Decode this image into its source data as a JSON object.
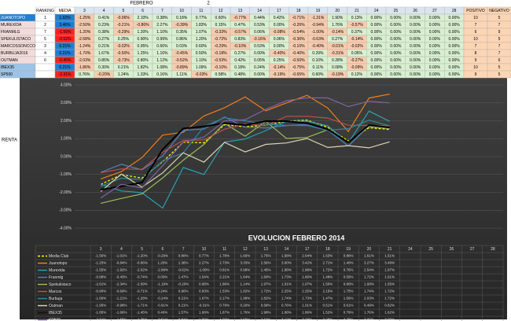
{
  "spreadsheet": {
    "month_label": "FEBRERO",
    "month_number": "2",
    "side_label": "RENTA",
    "columns": [
      "RANKING",
      "MEDIA",
      "3",
      "4",
      "5",
      "6",
      "7",
      "10",
      "11",
      "12",
      "13",
      "14",
      "17",
      "18",
      "19",
      "20",
      "21",
      "24",
      "25",
      "26",
      "27",
      "28",
      "POSITIVO",
      "NEGATIVO"
    ],
    "rows": [
      [
        "JUANOTOPO",
        "1",
        "1.92%",
        "-1.25%",
        "0.41%",
        "-0.06%",
        "2.10%",
        "0.38%",
        "0.18%",
        "0.77%",
        "0.60%",
        "-0.77%",
        "0.44%",
        "0.42%",
        "-0.71%",
        "-1.31%",
        "1.90%",
        "0.13%",
        "0.00%",
        "0.00%",
        "0.00%",
        "0.00%",
        "0.00%",
        "10",
        "5"
      ],
      [
        "MUREXIDA",
        "2",
        "3.46%",
        "-2.50%",
        "0.23%",
        "-0.21%",
        "-0.86%",
        "2.27%",
        "-0.39%",
        "1.83%",
        "0.15%",
        "0.47%",
        "0.53%",
        "0.00%",
        "-0.26%",
        "-0.94%",
        "1.76%",
        "-0.57%",
        "0.00%",
        "0.00%",
        "0.00%",
        "0.00%",
        "0.00%",
        "7",
        "7"
      ],
      [
        "FRANMLG",
        "7",
        "-1.56%",
        "-1.20%",
        "0.38%",
        "-0.29%",
        "1.20%",
        "1.10%",
        "0.35%",
        "1.07%",
        "-0.33%",
        "-0.57%",
        "0.06%",
        "-0.08%",
        "-0.54%",
        "-1.00%",
        "-0.14%",
        "0.37%",
        "0.00%",
        "0.00%",
        "0.00%",
        "0.00%",
        "0.00%",
        "6",
        "9"
      ],
      [
        "SPEKULISTACO",
        "5",
        "-0.52%",
        "-2.68%",
        "0.27%",
        "0.25%",
        "0.90%",
        "0.99%",
        "0.86%",
        "1.20%",
        "-0.72%",
        "0.83%",
        "-0.16%",
        "0.06%",
        "-0.36%",
        "-0.63%",
        "0.27%",
        "-0.14%",
        "0.00%",
        "0.00%",
        "0.00%",
        "0.00%",
        "0.00%",
        "10",
        "5"
      ],
      [
        "MARCOSSONCCO",
        "3",
        "0.21%",
        "-1.24%",
        "0.21%",
        "-0.02%",
        "0.95%",
        "0.66%",
        "0.03%",
        "0.60%",
        "-0.29%",
        "-0.10%",
        "0.53%",
        "0.00%",
        "-0.10%",
        "-0.40%",
        "-0.01%",
        "-0.02%",
        "0.00%",
        "0.00%",
        "0.00%",
        "0.00%",
        "0.00%",
        "7",
        "7"
      ],
      [
        "BURBUJA2016",
        "4",
        "0.21%",
        "-1.70%",
        "1.67%",
        "-0.50%",
        "1.25%",
        "1.16%",
        "-0.45%",
        "0.50%",
        "-0.18%",
        "0.27%",
        "0.00%",
        "-0.40%",
        "-0.40%",
        "0.29%",
        "-0.31%",
        "0.05%",
        "0.00%",
        "0.00%",
        "0.00%",
        "0.00%",
        "0.00%",
        "8",
        "7"
      ],
      [
        "OUTMAN",
        "6",
        "-0.45%",
        "-2.03%",
        "0.85%",
        "-0.73%",
        "0.80%",
        "1.12%",
        "-0.52%",
        "1.10%",
        "-0.53%",
        "0.42%",
        "0.05%",
        "0.25%",
        "-0.50%",
        "0.10%",
        "0.28%",
        "-0.27%",
        "0.00%",
        "0.00%",
        "0.00%",
        "0.00%",
        "0.00%",
        "9",
        "6"
      ],
      [
        "IBEX35",
        null,
        "0.21%",
        "-1.86%",
        "0.30%",
        "0.21%",
        "1.82%",
        "1.08%",
        "-0.89%",
        "1.09%",
        "-0.10%",
        "0.18%",
        "0.24%",
        "-0.14%",
        "-0.75%",
        "0.11%",
        "0.08%",
        "-0.09%",
        "0.00%",
        "0.00%",
        "0.00%",
        "0.00%",
        "0.00%",
        "10",
        "5"
      ],
      [
        "SP500",
        null,
        "-2.31%",
        "0.76%",
        "-0.20%",
        "1.24%",
        "1.33%",
        "0.16%",
        "1.11%",
        "-0.03%",
        "0.58%",
        "0.48%",
        "0.00%",
        "-0.19%",
        "-0.65%",
        "0.60%",
        "-0.19%",
        "0.12%",
        "0.00%",
        "0.00%",
        "0.00%",
        "0.00%",
        "0.00%",
        "9",
        "5"
      ]
    ]
  },
  "chart_data": {
    "type": "line",
    "title": "EVOLUCION FEBRERO 2014",
    "categories": [
      "3",
      "4",
      "5",
      "6",
      "7",
      "10",
      "11",
      "12",
      "13",
      "14",
      "17",
      "18",
      "19",
      "20",
      "21",
      "24",
      "25",
      "26",
      "27",
      "28"
    ],
    "ylim": [
      -4,
      4
    ],
    "yticks": [
      {
        "value": 4,
        "label": "4.00%"
      },
      {
        "value": 3,
        "label": "3.00%"
      },
      {
        "value": 2,
        "label": "2.00%"
      },
      {
        "value": 1,
        "label": "1.00%"
      },
      {
        "value": 0,
        "label": "0.00%"
      },
      {
        "value": -1,
        "label": "-1.00%"
      },
      {
        "value": -2,
        "label": "-2.00%"
      },
      {
        "value": -3,
        "label": "-3.00%"
      },
      {
        "value": -4,
        "label": "-4.00%"
      }
    ],
    "grid": true,
    "series": [
      {
        "name": "Media Club",
        "color": "#ffff00",
        "values": [
          -1.56,
          -1.01,
          -1.2,
          -0.29,
          0.8,
          0.77,
          1.78,
          1.66,
          1.75,
          1.98,
          2.04,
          1.63,
          0.86,
          1.61,
          1.51,
          null,
          null,
          null,
          null,
          null
        ],
        "value_labels": [
          "-1.56%",
          "-1.01%",
          "-1.20%",
          "-0.29%",
          "0.80%",
          "0.77%",
          "1.78%",
          "1.66%",
          "1.75%",
          "1.98%",
          "2.04%",
          "1.63%",
          "0.86%",
          "1.61%",
          "1.51%",
          null,
          null,
          null,
          null,
          null
        ]
      },
      {
        "name": "Juanotopo",
        "color": "#f07c1c",
        "values": [
          -1.25,
          -0.84,
          -0.06,
          1.2,
          1.36,
          2.27,
          2.73,
          3.33,
          2.56,
          3,
          3.42,
          2.71,
          1.4,
          3.27,
          3.49,
          null,
          null,
          null,
          null,
          null
        ],
        "value_labels": [
          "-1.25%",
          "-0.84%",
          "-0.06%",
          "1.20%",
          "1.36%",
          "2.27%",
          "2.73%",
          "3.33%",
          "2.56%",
          "3.00%",
          "3.42%",
          "2.71%",
          "1.40%",
          "3.27%",
          "3.49%",
          null,
          null,
          null,
          null,
          null
        ]
      },
      {
        "name": "Murexida",
        "color": "#2aa0b0",
        "values": [
          -1.55,
          -1.92,
          -2.02,
          -2.88,
          -0.61,
          -1,
          0.81,
          0.98,
          1.45,
          1.98,
          1.98,
          1.72,
          0.76,
          2.54,
          1.97,
          null,
          null,
          null,
          null,
          null
        ],
        "value_labels": [
          "-1.55%",
          "-1.92%",
          "-2.02%",
          "-2.88%",
          "-0.61%",
          "-1.00%",
          "0.81%",
          "0.98%",
          "1.45%",
          "1.98%",
          "1.98%",
          "1.72%",
          "0.76%",
          "2.54%",
          "1.97%",
          null,
          null,
          null,
          null,
          null
        ]
      },
      {
        "name": "Franmlg",
        "color": "#4f81bd",
        "values": [
          -0.88,
          -0.43,
          -0.74,
          0.03,
          1.47,
          1.54,
          2.21,
          1.64,
          1.6,
          1.73,
          1.8,
          1.48,
          0.59,
          1.72,
          1.61,
          null,
          null,
          null,
          null,
          null
        ],
        "value_labels": [
          "-0.88%",
          "-0.43%",
          "-0.74%",
          "0.03%",
          "1.47%",
          "1.54%",
          "2.21%",
          "1.64%",
          "1.60%",
          "1.73%",
          "1.80%",
          "1.48%",
          "0.59%",
          "1.72%",
          "1.61%",
          null,
          null,
          null,
          null,
          null
        ]
      },
      {
        "name": "Spekulistaco",
        "color": "#9bbb59",
        "values": [
          -2.61,
          -2.34,
          -2.09,
          -1.19,
          -0.2,
          0.68,
          1.86,
          1.14,
          1.97,
          1.01,
          1.07,
          1.5,
          0.8,
          1.68,
          1.55,
          null,
          null,
          null,
          null,
          null
        ],
        "value_labels": [
          "-2.61%",
          "-2.34%",
          "-2.09%",
          "-1.19%",
          "-0.20%",
          "0.68%",
          "1.86%",
          "1.14%",
          "1.97%",
          "1.01%",
          "1.07%",
          "1.50%",
          "0.80%",
          "1.68%",
          "1.55%",
          null,
          null,
          null,
          null,
          null
        ]
      },
      {
        "name": "Marcos",
        "color": "#c0504d",
        "values": [
          -0.9,
          -0.69,
          -0.71,
          0.24,
          0.9,
          0.93,
          1.53,
          1.82,
          1.72,
          2.25,
          2.25,
          2.15,
          1.75,
          1.74,
          1.72,
          null,
          null,
          null,
          null,
          null
        ],
        "value_labels": [
          "-0.90%",
          "-0.69%",
          "-0.71%",
          "0.24%",
          "0.90%",
          "0.93%",
          "1.53%",
          "1.82%",
          "1.72%",
          "2.25%",
          "2.25%",
          "2.15%",
          "1.75%",
          "1.74%",
          "1.72%",
          null,
          null,
          null,
          null,
          null
        ]
      },
      {
        "name": "Burbuja",
        "color": "#31859c",
        "values": [
          -1.66,
          -1.21,
          -1.28,
          -0.24,
          0.21,
          1.67,
          2.17,
          1.99,
          1.82,
          1.74,
          1.73,
          1.47,
          1.56,
          2.03,
          1.72,
          null,
          null,
          null,
          null,
          null
        ],
        "value_labels": [
          "-1.66%",
          "-1.21%",
          "-1.28%",
          "-0.24%",
          "0.21%",
          "1.67%",
          "2.17%",
          "1.99%",
          "1.82%",
          "1.74%",
          "1.73%",
          "1.47%",
          "1.56%",
          "2.03%",
          "1.72%",
          null,
          null,
          null,
          null,
          null
        ]
      },
      {
        "name": "Outman",
        "color": "#d9d5b0",
        "values": [
          -1.95,
          -0.98,
          -1.71,
          -0.91,
          0.21,
          -0.31,
          0.79,
          0.26,
          0.68,
          0.76,
          1.01,
          0.51,
          0.61,
          0.49,
          0.82,
          null,
          null,
          null,
          null,
          null
        ],
        "value_labels": [
          "-1.95%",
          "-0.98%",
          "-1.71%",
          "-0.91%",
          "0.21%",
          "-0.31%",
          "0.79%",
          "0.26%",
          "0.68%",
          "0.76%",
          "1.01%",
          "0.51%",
          "0.61%",
          "0.49%",
          "0.82%",
          null,
          null,
          null,
          null,
          null
        ]
      },
      {
        "name": "IBEX35",
        "color": "#000000",
        "values": [
          -1.85,
          -1.66,
          -1.45,
          0.4,
          1.57,
          1.68,
          1.87,
          1.76,
          1.98,
          1.98,
          1.86,
          1.52,
          0.79,
          1.76,
          1.62,
          null,
          null,
          null,
          null,
          null
        ],
        "value_labels": [
          "-1.85%",
          "-1.66%",
          "-1.45%",
          "0.40%",
          "1.57%",
          "1.68%",
          "1.87%",
          "1.76%",
          "1.98%",
          "1.98%",
          "1.86%",
          "1.52%",
          "0.79%",
          "1.76%",
          "1.62%",
          null,
          null,
          null,
          null,
          null
        ]
      },
      {
        "name": "SP500",
        "color": "#8064a2",
        "values": [
          -2.31,
          -1.55,
          -1.75,
          -0.51,
          0.81,
          1.09,
          1.99,
          2.06,
          2.64,
          3.12,
          3.28,
          3.28,
          2.79,
          3.09,
          3,
          null,
          null,
          null,
          null,
          null
        ],
        "value_labels": [
          "-2.31%",
          "-1.55%",
          "-1.75%",
          "-0.51%",
          "0.81%",
          "1.09%",
          "1.99%",
          "2.06%",
          "2.64%",
          "3.12%",
          "3.28%",
          "3.28%",
          "2.79%",
          "3.09%",
          "3.00%",
          null,
          null,
          null,
          null,
          null
        ]
      }
    ]
  }
}
